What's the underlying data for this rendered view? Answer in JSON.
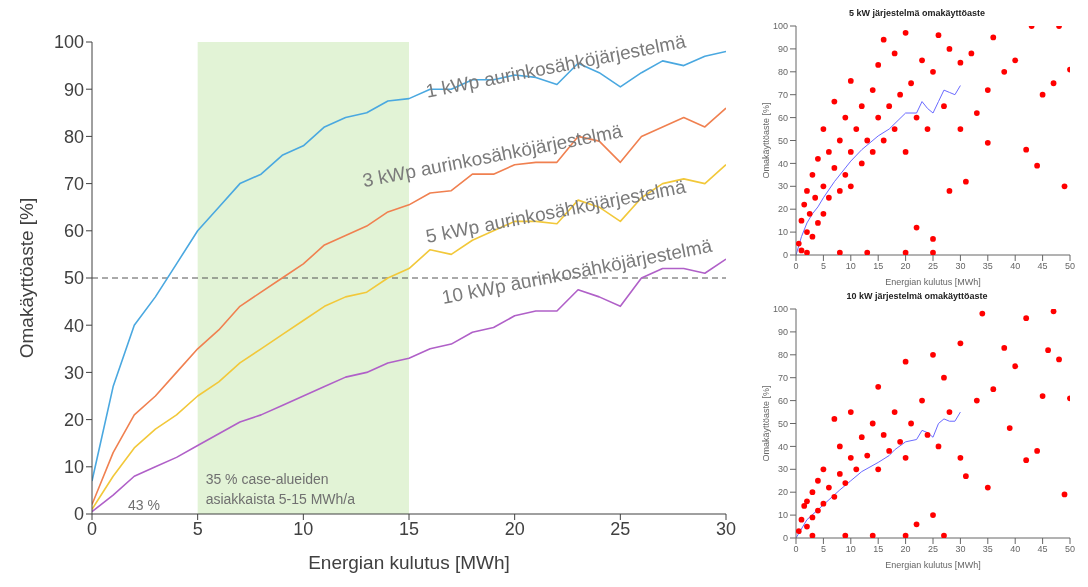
{
  "chart_data": [
    {
      "type": "line",
      "xlabel": "Energian kulutus [MWh]",
      "ylabel": "Omakäyttöaste [%]",
      "x": [
        0,
        1,
        2,
        3,
        4,
        5,
        6,
        7,
        8,
        9,
        10,
        11,
        12,
        13,
        14,
        15,
        16,
        17,
        18,
        19,
        20,
        21,
        22,
        23,
        24,
        25,
        26,
        27,
        28,
        29,
        30
      ],
      "series": [
        {
          "name": "1 kWp aurinkosähköjärjestelmä",
          "color": "#4aa8e0",
          "values": [
            7,
            27,
            40,
            46,
            53,
            60,
            65,
            70,
            72,
            76,
            78,
            82,
            84,
            85,
            87.5,
            88,
            90,
            90,
            92,
            92,
            93,
            92.5,
            91,
            95.5,
            93.5,
            90.5,
            93.5,
            96,
            95,
            97,
            98
          ]
        },
        {
          "name": "3 kWp aurinkosähköjärjestelmä",
          "color": "#f08050",
          "values": [
            2,
            13,
            21,
            25,
            30,
            35,
            39,
            44,
            47,
            50,
            53,
            57,
            59,
            61,
            64,
            65.5,
            68,
            68.5,
            72,
            72,
            74,
            74.5,
            74.5,
            80,
            79,
            74.5,
            80,
            82,
            84,
            82,
            86
          ]
        },
        {
          "name": "5 kWp aurinkosähköjärjestelmä",
          "color": "#f2c83a",
          "values": [
            1,
            8,
            14,
            18,
            21,
            25,
            28,
            32,
            35,
            38,
            41,
            44,
            46,
            47,
            50,
            52,
            56,
            55,
            58,
            60,
            62,
            62,
            61.5,
            66.5,
            65,
            62,
            67,
            70,
            71,
            70,
            74
          ]
        },
        {
          "name": "10 kWp aurinkosähköjärjestelmä",
          "color": "#b060c8",
          "values": [
            0.5,
            4,
            8,
            10,
            12,
            14.5,
            17,
            19.5,
            21,
            23,
            25,
            27,
            29,
            30,
            32,
            33,
            35,
            36,
            38.5,
            39.5,
            42,
            43,
            43,
            47.5,
            46,
            44,
            50,
            52,
            52,
            51,
            54
          ]
        }
      ],
      "xlim": [
        0,
        30
      ],
      "xticks": [
        0,
        5,
        10,
        15,
        20,
        25,
        30
      ],
      "ylim": [
        0,
        100
      ],
      "yticks": [
        0,
        10,
        20,
        30,
        40,
        50,
        60,
        70,
        80,
        90,
        100
      ],
      "ref_lines": [
        {
          "axis": "y",
          "value": 50,
          "line_style": "dashed",
          "color": "#555555"
        }
      ],
      "bands": [
        {
          "axis": "x",
          "from": 5,
          "to": 15,
          "label": "35 % case-alueiden asiakkaista 5-15 MWh/a",
          "color": "#e2f3d6"
        }
      ],
      "annotations": [
        "43 %"
      ]
    },
    {
      "type": "scatter",
      "title": "5 kW järjestelmä omakäyttöaste",
      "xlabel": "Energian kulutus [MWh]",
      "ylabel": "Omakäyttöaste [%]",
      "series": [
        {
          "color": "#ff0000",
          "x": [
            0.5,
            1,
            1,
            1.5,
            2,
            2,
            2.5,
            3,
            3,
            3.5,
            4,
            4,
            5,
            5,
            5,
            6,
            6,
            7,
            7,
            8,
            8,
            9,
            9,
            10,
            10,
            10,
            11,
            12,
            12,
            13,
            14,
            14,
            15,
            15,
            16,
            16,
            17,
            18,
            18,
            19,
            20,
            20,
            21,
            22,
            22,
            23,
            24,
            25,
            25,
            26,
            27,
            28,
            28,
            30,
            30,
            31,
            32,
            33,
            35,
            35,
            36,
            38,
            40,
            42,
            43,
            44,
            45,
            47,
            48,
            49,
            50,
            2,
            8,
            13,
            20,
            25
          ],
          "values": [
            5,
            15,
            2,
            22,
            10,
            28,
            18,
            35,
            8,
            25,
            42,
            14,
            55,
            30,
            18,
            45,
            25,
            38,
            67,
            50,
            28,
            60,
            35,
            76,
            45,
            30,
            55,
            65,
            40,
            50,
            72,
            45,
            83,
            60,
            94,
            50,
            65,
            88,
            55,
            70,
            97,
            45,
            75,
            12,
            60,
            85,
            55,
            80,
            7,
            96,
            65,
            90,
            28,
            84,
            55,
            32,
            88,
            62,
            72,
            49,
            95,
            80,
            85,
            46,
            100,
            39,
            70,
            75,
            100,
            30,
            81,
            1,
            1,
            1,
            1,
            1
          ]
        },
        {
          "type": "line",
          "color": "#6a6aff",
          "x": [
            0,
            1,
            2,
            3,
            4,
            5,
            7,
            10,
            12,
            15,
            17,
            20,
            22,
            23,
            24,
            25,
            26,
            27,
            28,
            29,
            30
          ],
          "values": [
            0,
            8,
            14,
            18,
            21,
            25,
            32,
            41,
            46,
            52,
            55,
            62,
            62,
            67,
            64,
            62,
            67,
            72,
            71,
            70,
            74
          ]
        }
      ],
      "xlim": [
        0,
        50
      ],
      "xticks": [
        0,
        5,
        10,
        15,
        20,
        25,
        30,
        35,
        40,
        45,
        50
      ],
      "ylim": [
        0,
        100
      ],
      "yticks": [
        0,
        10,
        20,
        30,
        40,
        50,
        60,
        70,
        80,
        90,
        100
      ]
    },
    {
      "type": "scatter",
      "title": "10 kW järjestelmä omakäyttöaste",
      "xlabel": "Energian kulutus [MWh]",
      "ylabel": "Omakäyttöaste [%]",
      "series": [
        {
          "color": "#ff0000",
          "x": [
            0.5,
            1,
            1.5,
            2,
            2,
            3,
            3,
            4,
            4,
            5,
            5,
            6,
            7,
            7,
            8,
            8,
            9,
            10,
            10,
            11,
            12,
            13,
            14,
            15,
            15,
            16,
            17,
            18,
            19,
            20,
            20,
            21,
            22,
            23,
            24,
            25,
            25,
            26,
            27,
            28,
            30,
            30,
            31,
            33,
            34,
            35,
            36,
            38,
            39,
            40,
            42,
            42,
            44,
            45,
            46,
            47,
            48,
            49,
            50,
            3,
            9,
            14,
            20,
            27
          ],
          "values": [
            3,
            8,
            14,
            5,
            16,
            20,
            9,
            25,
            12,
            30,
            15,
            22,
            52,
            18,
            28,
            40,
            24,
            35,
            55,
            30,
            44,
            36,
            50,
            66,
            30,
            45,
            38,
            55,
            42,
            77,
            35,
            50,
            6,
            60,
            45,
            80,
            10,
            40,
            70,
            55,
            85,
            35,
            27,
            60,
            98,
            22,
            65,
            83,
            48,
            75,
            34,
            96,
            38,
            62,
            82,
            99,
            78,
            19,
            61,
            1,
            1,
            1,
            1,
            1
          ]
        },
        {
          "type": "line",
          "color": "#6a6aff",
          "x": [
            0,
            2,
            5,
            8,
            10,
            12,
            15,
            17,
            18,
            20,
            22,
            23,
            24,
            25,
            26,
            27,
            28,
            29,
            30
          ],
          "values": [
            0,
            8,
            14.5,
            21,
            25,
            29,
            33,
            36,
            38.5,
            42,
            43,
            47,
            46,
            44,
            50,
            52,
            51,
            51,
            55
          ]
        }
      ],
      "xlim": [
        0,
        50
      ],
      "xticks": [
        0,
        5,
        10,
        15,
        20,
        25,
        30,
        35,
        40,
        45,
        50
      ],
      "ylim": [
        0,
        100
      ],
      "yticks": [
        0,
        10,
        20,
        30,
        40,
        50,
        60,
        70,
        80,
        90,
        100
      ]
    }
  ]
}
